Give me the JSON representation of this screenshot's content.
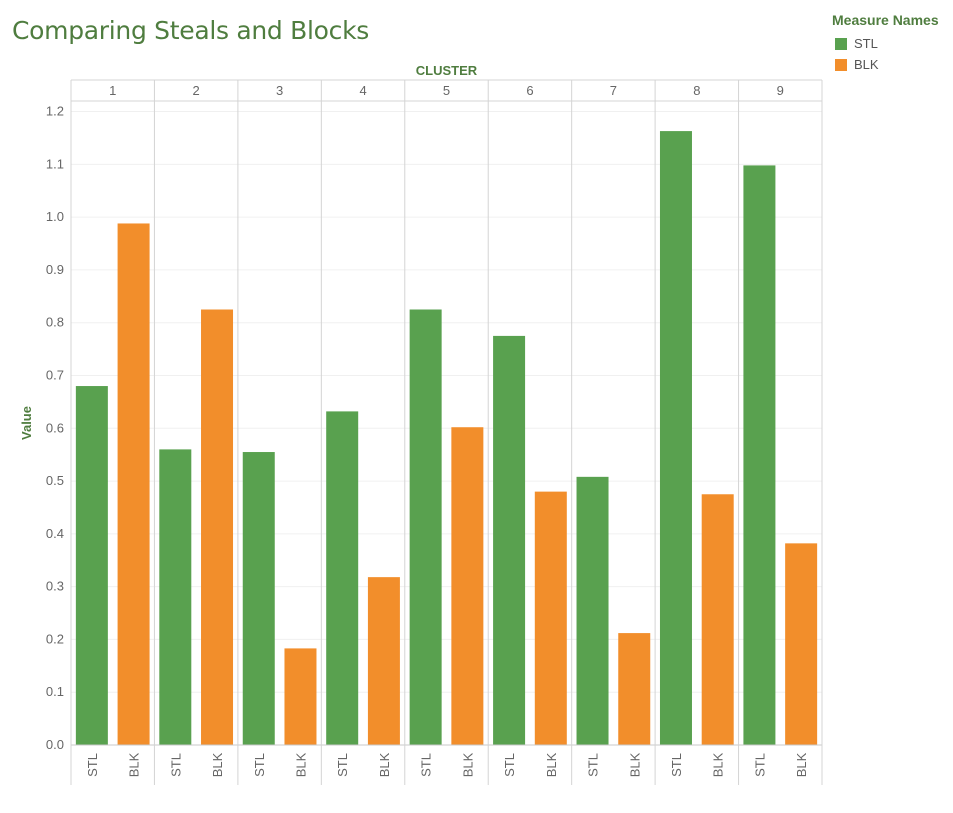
{
  "chart_data": {
    "type": "bar",
    "title": "Comparing Steals and Blocks",
    "column_header": "CLUSTER",
    "ylabel": "Value",
    "ylim": [
      0,
      1.22
    ],
    "yticks": [
      "0.0",
      "0.1",
      "0.2",
      "0.3",
      "0.4",
      "0.5",
      "0.6",
      "0.7",
      "0.8",
      "0.9",
      "1.0",
      "1.1",
      "1.2"
    ],
    "clusters": [
      "1",
      "2",
      "3",
      "4",
      "5",
      "6",
      "7",
      "8",
      "9"
    ],
    "measures": [
      "STL",
      "BLK"
    ],
    "series": [
      {
        "name": "STL",
        "color": "#59a14f",
        "values": [
          0.68,
          0.56,
          0.555,
          0.632,
          0.825,
          0.775,
          0.508,
          1.163,
          1.098
        ]
      },
      {
        "name": "BLK",
        "color": "#f28e2b",
        "values": [
          0.988,
          0.825,
          0.183,
          0.318,
          0.602,
          0.48,
          0.212,
          0.475,
          0.382
        ]
      }
    ],
    "legend": {
      "title": "Measure Names",
      "position": "top-right"
    },
    "grid": true
  }
}
